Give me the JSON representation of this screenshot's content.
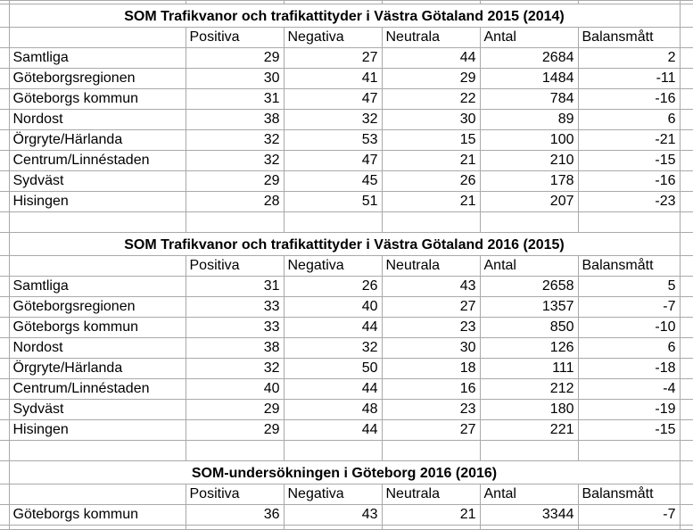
{
  "grid": {
    "gridline_color": "#a9a9a9",
    "text_color": "#000000",
    "background_color": "#ffffff"
  },
  "tables": [
    {
      "title": "SOM Trafikvanor och trafikattityder i Västra Götaland 2015 (2014)",
      "columns": [
        "Positiva",
        "Negativa",
        "Neutrala",
        "Antal",
        "Balansmått"
      ],
      "rows": [
        {
          "label": "Samtliga",
          "values": [
            29,
            27,
            44,
            2684,
            2
          ]
        },
        {
          "label": "Göteborgsregionen",
          "values": [
            30,
            41,
            29,
            1484,
            -11
          ]
        },
        {
          "label": "Göteborgs kommun",
          "values": [
            31,
            47,
            22,
            784,
            -16
          ]
        },
        {
          "label": "Nordost",
          "values": [
            38,
            32,
            30,
            89,
            6
          ]
        },
        {
          "label": "Örgryte/Härlanda",
          "values": [
            32,
            53,
            15,
            100,
            -21
          ]
        },
        {
          "label": "Centrum/Linnéstaden",
          "values": [
            32,
            47,
            21,
            210,
            -15
          ]
        },
        {
          "label": "Sydväst",
          "values": [
            29,
            45,
            26,
            178,
            -16
          ]
        },
        {
          "label": "Hisingen",
          "values": [
            28,
            51,
            21,
            207,
            -23
          ]
        }
      ]
    },
    {
      "title": "SOM Trafikvanor och trafikattityder i Västra Götaland 2016 (2015)",
      "columns": [
        "Positiva",
        "Negativa",
        "Neutrala",
        "Antal",
        "Balansmått"
      ],
      "rows": [
        {
          "label": "Samtliga",
          "values": [
            31,
            26,
            43,
            2658,
            5
          ]
        },
        {
          "label": "Göteborgsregionen",
          "values": [
            33,
            40,
            27,
            1357,
            -7
          ]
        },
        {
          "label": "Göteborgs kommun",
          "values": [
            33,
            44,
            23,
            850,
            -10
          ]
        },
        {
          "label": "Nordost",
          "values": [
            38,
            32,
            30,
            126,
            6
          ]
        },
        {
          "label": "Örgryte/Härlanda",
          "values": [
            32,
            50,
            18,
            111,
            -18
          ]
        },
        {
          "label": "Centrum/Linnéstaden",
          "values": [
            40,
            44,
            16,
            212,
            -4
          ]
        },
        {
          "label": "Sydväst",
          "values": [
            29,
            48,
            23,
            180,
            -19
          ]
        },
        {
          "label": "Hisingen",
          "values": [
            29,
            44,
            27,
            221,
            -15
          ]
        }
      ]
    },
    {
      "title": "SOM-undersökningen i Göteborg 2016 (2016)",
      "columns": [
        "Positiva",
        "Negativa",
        "Neutrala",
        "Antal",
        "Balansmått"
      ],
      "rows": [
        {
          "label": "Göteborgs kommun",
          "values": [
            36,
            43,
            21,
            3344,
            -7
          ]
        }
      ]
    }
  ]
}
